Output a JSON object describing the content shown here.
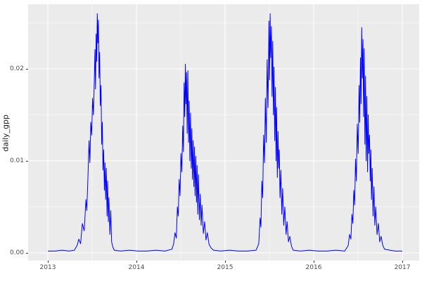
{
  "figure": {
    "background_color": "#ffffff"
  },
  "chart_data": {
    "type": "line",
    "title": "",
    "xlabel": "",
    "ylabel": "daily_gpp",
    "x_range": [
      2012.78,
      2017.19
    ],
    "y_range": [
      -0.00084,
      0.027
    ],
    "x_major_ticks": [
      2013,
      2014,
      2015,
      2016,
      2017
    ],
    "x_tick_labels": [
      "2013",
      "2014",
      "2015",
      "2016",
      "2017"
    ],
    "x_minor_ticks": [
      2013.5,
      2014.5,
      2015.5,
      2016.5
    ],
    "y_major_ticks": [
      0,
      0.01,
      0.02
    ],
    "y_tick_labels": [
      "0.00",
      "0.01",
      "0.02"
    ],
    "y_minor_ticks": [
      0.005,
      0.015,
      0.025
    ],
    "grid": true,
    "legend": "none",
    "style": {
      "panel_background": "#ebebeb",
      "grid_major_color": "#ffffff",
      "grid_minor_color": "#ffffff",
      "line_color": "#0000ff",
      "tick_text_color": "#4d4d4d",
      "axis_title_color": "#1a1a1a",
      "tick_mark_color": "#333333"
    },
    "series": [
      {
        "name": "daily_gpp",
        "points": [
          [
            2013.0,
            0.0002
          ],
          [
            2013.08,
            0.0002
          ],
          [
            2013.16,
            0.0003
          ],
          [
            2013.24,
            0.0002
          ],
          [
            2013.3,
            0.0003
          ],
          [
            2013.33,
            0.0008
          ],
          [
            2013.35,
            0.0015
          ],
          [
            2013.37,
            0.001
          ],
          [
            2013.39,
            0.0032
          ],
          [
            2013.41,
            0.0024
          ],
          [
            2013.43,
            0.0058
          ],
          [
            2013.44,
            0.0046
          ],
          [
            2013.455,
            0.0088
          ],
          [
            2013.465,
            0.0122
          ],
          [
            2013.475,
            0.0098
          ],
          [
            2013.485,
            0.0142
          ],
          [
            2013.495,
            0.0128
          ],
          [
            2013.505,
            0.0168
          ],
          [
            2013.515,
            0.015
          ],
          [
            2013.525,
            0.0192
          ],
          [
            2013.532,
            0.0221
          ],
          [
            2013.538,
            0.0178
          ],
          [
            2013.545,
            0.0238
          ],
          [
            2013.552,
            0.0208
          ],
          [
            2013.558,
            0.026
          ],
          [
            2013.565,
            0.0228
          ],
          [
            2013.571,
            0.0253
          ],
          [
            2013.578,
            0.019
          ],
          [
            2013.585,
            0.0218
          ],
          [
            2013.592,
            0.016
          ],
          [
            2013.6,
            0.0182
          ],
          [
            2013.608,
            0.0118
          ],
          [
            2013.615,
            0.0142
          ],
          [
            2013.622,
            0.009
          ],
          [
            2013.63,
            0.0112
          ],
          [
            2013.638,
            0.0068
          ],
          [
            2013.645,
            0.0098
          ],
          [
            2013.652,
            0.0058
          ],
          [
            2013.66,
            0.0092
          ],
          [
            2013.668,
            0.004
          ],
          [
            2013.675,
            0.0078
          ],
          [
            2013.683,
            0.0034
          ],
          [
            2013.69,
            0.006
          ],
          [
            2013.7,
            0.002
          ],
          [
            2013.71,
            0.0046
          ],
          [
            2013.72,
            0.0012
          ],
          [
            2013.735,
            0.0006
          ],
          [
            2013.75,
            0.0003
          ],
          [
            2013.82,
            0.0002
          ],
          [
            2013.92,
            0.0003
          ],
          [
            2014.02,
            0.0002
          ],
          [
            2014.12,
            0.0002
          ],
          [
            2014.22,
            0.0003
          ],
          [
            2014.32,
            0.0002
          ],
          [
            2014.4,
            0.0004
          ],
          [
            2014.42,
            0.001
          ],
          [
            2014.435,
            0.0022
          ],
          [
            2014.45,
            0.0016
          ],
          [
            2014.462,
            0.005
          ],
          [
            2014.472,
            0.004
          ],
          [
            2014.482,
            0.008
          ],
          [
            2014.492,
            0.0062
          ],
          [
            2014.502,
            0.0108
          ],
          [
            2014.512,
            0.0088
          ],
          [
            2014.522,
            0.0138
          ],
          [
            2014.53,
            0.011
          ],
          [
            2014.538,
            0.0185
          ],
          [
            2014.545,
            0.0148
          ],
          [
            2014.552,
            0.0205
          ],
          [
            2014.558,
            0.0162
          ],
          [
            2014.565,
            0.0196
          ],
          [
            2014.572,
            0.013
          ],
          [
            2014.58,
            0.0198
          ],
          [
            2014.588,
            0.012
          ],
          [
            2014.595,
            0.0165
          ],
          [
            2014.602,
            0.01
          ],
          [
            2014.61,
            0.0152
          ],
          [
            2014.618,
            0.0092
          ],
          [
            2014.625,
            0.0135
          ],
          [
            2014.632,
            0.008
          ],
          [
            2014.64,
            0.0122
          ],
          [
            2014.648,
            0.0072
          ],
          [
            2014.655,
            0.0115
          ],
          [
            2014.662,
            0.0062
          ],
          [
            2014.67,
            0.0105
          ],
          [
            2014.678,
            0.0055
          ],
          [
            2014.685,
            0.0095
          ],
          [
            2014.692,
            0.0042
          ],
          [
            2014.7,
            0.0085
          ],
          [
            2014.71,
            0.0036
          ],
          [
            2014.72,
            0.0064
          ],
          [
            2014.73,
            0.003
          ],
          [
            2014.74,
            0.0052
          ],
          [
            2014.755,
            0.0021
          ],
          [
            2014.77,
            0.0034
          ],
          [
            2014.785,
            0.0014
          ],
          [
            2014.8,
            0.0022
          ],
          [
            2014.82,
            0.0009
          ],
          [
            2014.845,
            0.0005
          ],
          [
            2014.87,
            0.0003
          ],
          [
            2014.95,
            0.0002
          ],
          [
            2015.05,
            0.0003
          ],
          [
            2015.15,
            0.0002
          ],
          [
            2015.25,
            0.0002
          ],
          [
            2015.35,
            0.0003
          ],
          [
            2015.38,
            0.001
          ],
          [
            2015.395,
            0.0038
          ],
          [
            2015.405,
            0.0028
          ],
          [
            2015.415,
            0.0078
          ],
          [
            2015.425,
            0.006
          ],
          [
            2015.435,
            0.0128
          ],
          [
            2015.445,
            0.0098
          ],
          [
            2015.455,
            0.0168
          ],
          [
            2015.465,
            0.012
          ],
          [
            2015.475,
            0.021
          ],
          [
            2015.485,
            0.0158
          ],
          [
            2015.495,
            0.0252
          ],
          [
            2015.502,
            0.0188
          ],
          [
            2015.509,
            0.026
          ],
          [
            2015.516,
            0.0212
          ],
          [
            2015.523,
            0.0246
          ],
          [
            2015.53,
            0.017
          ],
          [
            2015.538,
            0.023
          ],
          [
            2015.545,
            0.015
          ],
          [
            2015.552,
            0.0202
          ],
          [
            2015.56,
            0.0122
          ],
          [
            2015.568,
            0.018
          ],
          [
            2015.575,
            0.01
          ],
          [
            2015.582,
            0.0158
          ],
          [
            2015.59,
            0.0082
          ],
          [
            2015.598,
            0.0132
          ],
          [
            2015.605,
            0.0092
          ],
          [
            2015.612,
            0.0112
          ],
          [
            2015.62,
            0.006
          ],
          [
            2015.63,
            0.009
          ],
          [
            2015.64,
            0.0042
          ],
          [
            2015.65,
            0.007
          ],
          [
            2015.662,
            0.003
          ],
          [
            2015.675,
            0.005
          ],
          [
            2015.688,
            0.002
          ],
          [
            2015.7,
            0.0034
          ],
          [
            2015.715,
            0.0012
          ],
          [
            2015.73,
            0.0018
          ],
          [
            2015.75,
            0.0007
          ],
          [
            2015.77,
            0.0003
          ],
          [
            2015.85,
            0.0002
          ],
          [
            2015.95,
            0.0003
          ],
          [
            2016.05,
            0.0002
          ],
          [
            2016.15,
            0.0002
          ],
          [
            2016.25,
            0.0003
          ],
          [
            2016.35,
            0.0002
          ],
          [
            2016.39,
            0.0008
          ],
          [
            2016.405,
            0.002
          ],
          [
            2016.42,
            0.0015
          ],
          [
            2016.432,
            0.0042
          ],
          [
            2016.442,
            0.0032
          ],
          [
            2016.452,
            0.0068
          ],
          [
            2016.462,
            0.0052
          ],
          [
            2016.472,
            0.0102
          ],
          [
            2016.482,
            0.0078
          ],
          [
            2016.492,
            0.014
          ],
          [
            2016.502,
            0.0108
          ],
          [
            2016.512,
            0.0182
          ],
          [
            2016.52,
            0.0142
          ],
          [
            2016.528,
            0.0212
          ],
          [
            2016.535,
            0.0162
          ],
          [
            2016.542,
            0.0245
          ],
          [
            2016.549,
            0.019
          ],
          [
            2016.556,
            0.0232
          ],
          [
            2016.563,
            0.0148
          ],
          [
            2016.57,
            0.0222
          ],
          [
            2016.578,
            0.0118
          ],
          [
            2016.585,
            0.0192
          ],
          [
            2016.592,
            0.01
          ],
          [
            2016.6,
            0.017
          ],
          [
            2016.608,
            0.0088
          ],
          [
            2016.615,
            0.015
          ],
          [
            2016.622,
            0.0108
          ],
          [
            2016.63,
            0.0128
          ],
          [
            2016.638,
            0.0078
          ],
          [
            2016.645,
            0.0112
          ],
          [
            2016.652,
            0.0058
          ],
          [
            2016.66,
            0.0092
          ],
          [
            2016.67,
            0.004
          ],
          [
            2016.68,
            0.0072
          ],
          [
            2016.69,
            0.003
          ],
          [
            2016.7,
            0.005
          ],
          [
            2016.715,
            0.002
          ],
          [
            2016.73,
            0.0032
          ],
          [
            2016.745,
            0.0012
          ],
          [
            2016.76,
            0.0018
          ],
          [
            2016.78,
            0.0008
          ],
          [
            2016.8,
            0.0004
          ],
          [
            2016.86,
            0.0003
          ],
          [
            2016.92,
            0.0002
          ],
          [
            2016.97,
            0.0002
          ],
          [
            2017.0,
            0.0002
          ]
        ]
      }
    ]
  }
}
